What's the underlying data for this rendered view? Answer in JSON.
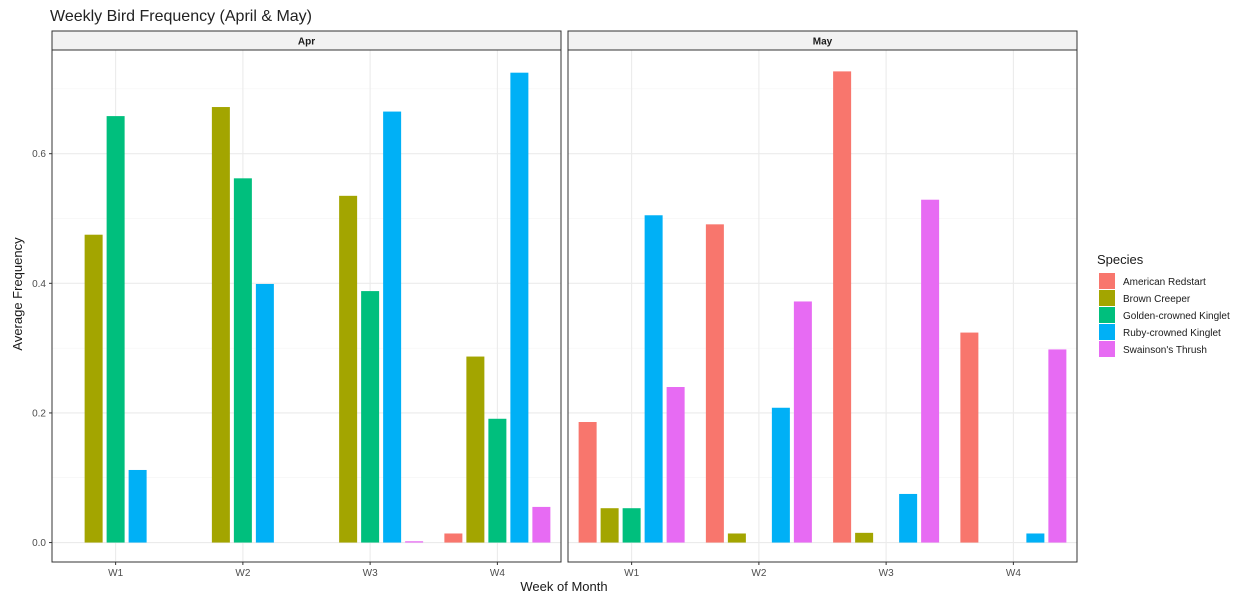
{
  "chart_data": {
    "type": "bar",
    "title": "Weekly Bird Frequency (April & May)",
    "xlabel": "Week of Month",
    "ylabel": "Average Frequency",
    "categories": [
      "W1",
      "W2",
      "W3",
      "W4"
    ],
    "ylim": [
      -0.03,
      0.76
    ],
    "yticks": [
      0.0,
      0.2,
      0.4,
      0.6
    ],
    "ytick_labels": [
      "0.0",
      "0.2",
      "0.4",
      "0.6"
    ],
    "grid": true,
    "legend": {
      "title": "Species",
      "position": "right"
    },
    "series": [
      {
        "name": "American Redstart",
        "color": "#F8766D"
      },
      {
        "name": "Brown Creeper",
        "color": "#A3A500"
      },
      {
        "name": "Golden-crowned Kinglet",
        "color": "#00BF7D"
      },
      {
        "name": "Ruby-crowned Kinglet",
        "color": "#00B0F6"
      },
      {
        "name": "Swainson's Thrush",
        "color": "#E76BF3"
      }
    ],
    "panels": [
      {
        "label": "Apr",
        "values": [
          [
            null,
            0.475,
            0.658,
            0.112,
            null
          ],
          [
            null,
            0.672,
            0.562,
            0.399,
            null
          ],
          [
            null,
            0.535,
            0.388,
            0.665,
            0.002
          ],
          [
            0.014,
            0.287,
            0.191,
            0.725,
            0.055
          ]
        ]
      },
      {
        "label": "May",
        "values": [
          [
            0.186,
            0.053,
            0.053,
            0.505,
            0.24
          ],
          [
            0.491,
            0.014,
            null,
            0.208,
            0.372
          ],
          [
            0.727,
            0.015,
            null,
            0.075,
            0.529
          ],
          [
            0.324,
            null,
            null,
            0.014,
            0.298
          ]
        ]
      }
    ]
  }
}
